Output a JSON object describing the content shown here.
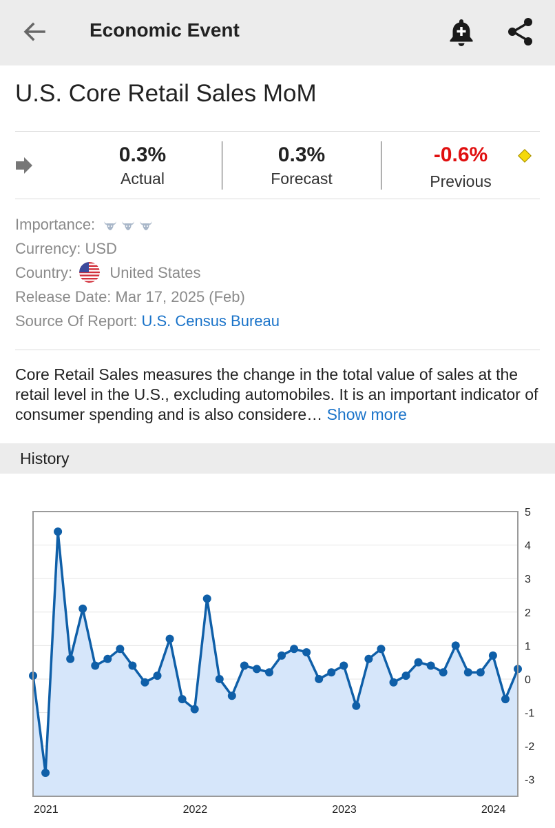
{
  "header": {
    "title": "Economic Event",
    "back_icon": "arrow-left-icon",
    "alert_icon": "bell-plus-icon",
    "share_icon": "share-icon"
  },
  "event": {
    "title": "U.S. Core Retail Sales MoM"
  },
  "stats": {
    "actual": {
      "value": "0.3%",
      "label": "Actual"
    },
    "forecast": {
      "value": "0.3%",
      "label": "Forecast"
    },
    "previous": {
      "value": "-0.6%",
      "label": "Previous",
      "color": "#e01010"
    }
  },
  "info": {
    "importance_label": "Importance:",
    "importance_level": 3,
    "currency_label": "Currency:",
    "currency_value": "USD",
    "country_label": "Country:",
    "country_value": "United States",
    "release_label": "Release Date:",
    "release_value": "Mar 17, 2025 (Feb)",
    "source_label": "Source Of Report:",
    "source_value": "U.S. Census Bureau"
  },
  "description": {
    "text": "Core Retail Sales measures the change in the total value of sales at the retail level in the U.S., excluding automobiles. It is an important indicator of consumer spending and is also considere…",
    "show_more": "Show more"
  },
  "history": {
    "label": "History"
  },
  "colors": {
    "accent": "#1a73c9",
    "negative": "#e01010",
    "line": "#0f5fa8",
    "fill": "#d6e6fa"
  },
  "chart_data": {
    "type": "area",
    "x_ticks": [
      "2021",
      "2022",
      "2023",
      "2024"
    ],
    "y_ticks": [
      5,
      4,
      3,
      2,
      1,
      0,
      -1,
      -2,
      -3
    ],
    "ylim": [
      -3.5,
      5
    ],
    "y_axis_side": "right",
    "grid": true,
    "series": [
      {
        "values": [
          0.1,
          -2.8,
          4.4,
          0.6,
          2.1,
          0.4,
          0.6,
          0.9,
          0.4,
          -0.1,
          0.1,
          1.2,
          -0.6,
          -0.9,
          2.4,
          0.0,
          -0.5,
          0.4,
          0.3,
          0.2,
          0.7,
          0.9,
          0.8,
          0.0,
          0.2,
          0.4,
          -0.8,
          0.6,
          0.9,
          -0.1,
          0.1,
          0.5,
          0.4,
          0.2,
          1.0,
          0.2,
          0.2,
          0.7,
          -0.6,
          0.3
        ]
      }
    ]
  }
}
